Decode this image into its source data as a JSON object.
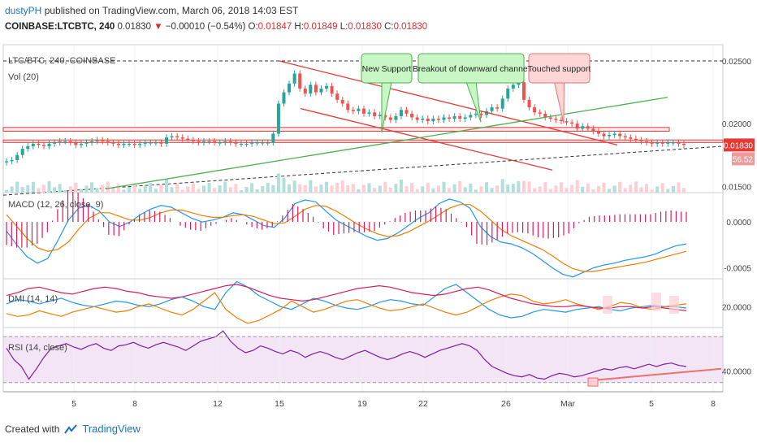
{
  "header": {
    "author": "dustyPH",
    "published_text": "published on TradingView.com, March 06, 2018 14:03 EST",
    "symbol": "COINBASE:LTCBTC, 240",
    "last": "0.01830",
    "arrow": "▼",
    "change": "−0.00010 (−0.54%)",
    "o_label": "O:",
    "o_value": "0.01847",
    "h_label": "H:",
    "h_value": "0.01849",
    "l_label": "L:",
    "l_value": "0.01830",
    "c_label": "C:",
    "c_value": "0.01830"
  },
  "footer": {
    "created_with": "Created with",
    "brand": "TradingView"
  },
  "colors": {
    "up": "#26a69a",
    "down": "#ef5350",
    "resistance": "#e53935",
    "support": "#4caf50",
    "macd": "#2196f3",
    "signal": "#f57c00",
    "hist": "#d81b60",
    "rsi": "#7b1fa2",
    "rsi_band": "#f3e5f5"
  },
  "chart_data": [
    {
      "type": "candlestick",
      "title": "LTC/BTC, 240, COINBASE",
      "volume_label": "Vol (20)",
      "x_tick_labels": [
        "5",
        "8",
        "12",
        "15",
        "19",
        "22",
        "26",
        "Mar",
        "5",
        "8"
      ],
      "y_tick_labels": [
        "0.02500",
        "0.02000",
        "0.01500"
      ],
      "ylim": [
        0.0145,
        0.0263
      ],
      "price_label": "0.01830",
      "volume_label_value": "56.52",
      "close_series": [
        0.017,
        0.0171,
        0.0175,
        0.018,
        0.0182,
        0.0184,
        0.0183,
        0.0182,
        0.0184,
        0.0185,
        0.0186,
        0.0186,
        0.0185,
        0.0183,
        0.0184,
        0.0185,
        0.0186,
        0.0187,
        0.0186,
        0.0185,
        0.0184,
        0.0183,
        0.0184,
        0.0184,
        0.0183,
        0.0184,
        0.0185,
        0.0185,
        0.0185,
        0.0184,
        0.0189,
        0.019,
        0.0189,
        0.0188,
        0.0187,
        0.0186,
        0.0185,
        0.0186,
        0.0186,
        0.0185,
        0.0185,
        0.0186,
        0.0185,
        0.0184,
        0.0184,
        0.0184,
        0.0185,
        0.0185,
        0.0185,
        0.0185,
        0.0192,
        0.0216,
        0.0225,
        0.0232,
        0.024,
        0.0228,
        0.0224,
        0.0231,
        0.0225,
        0.0228,
        0.023,
        0.0224,
        0.0219,
        0.0216,
        0.0211,
        0.021,
        0.0212,
        0.0208,
        0.0209,
        0.0206,
        0.0207,
        0.0205,
        0.0203,
        0.0206,
        0.0211,
        0.0208,
        0.0205,
        0.0203,
        0.0204,
        0.0202,
        0.0204,
        0.0203,
        0.0205,
        0.0204,
        0.0206,
        0.0204,
        0.0205,
        0.0207,
        0.0208,
        0.0207,
        0.021,
        0.0213,
        0.0212,
        0.022,
        0.0228,
        0.0231,
        0.0233,
        0.0219,
        0.0213,
        0.0209,
        0.0208,
        0.0205,
        0.0204,
        0.0203,
        0.0202,
        0.0201,
        0.02,
        0.0196,
        0.0198,
        0.0196,
        0.0194,
        0.0192,
        0.019,
        0.0191,
        0.0192,
        0.019,
        0.0189,
        0.0188,
        0.0187,
        0.0186,
        0.0185,
        0.0184,
        0.0185,
        0.0184,
        0.0185,
        0.0185,
        0.0184,
        0.0183
      ],
      "annotations": [
        "New Support",
        "Breakout of downward channel",
        "Touched support"
      ]
    },
    {
      "type": "line",
      "title": "MACD (12, 26, close, 9)",
      "y_tick_labels": [
        "0.0000",
        "-0.0005"
      ],
      "ylim": [
        -0.00062,
        0.00032
      ],
      "series": [
        {
          "values": [
            -0.0001,
            -0.00025,
            -0.00038,
            -0.00045,
            -0.0004,
            -0.0002,
            2e-05,
            0.00015,
            0.00018,
            0.00012,
            0.0,
            -5e-05,
            0.0,
            8e-05,
            0.00014,
            0.00018,
            0.00016,
            0.0001,
            4e-05,
            0.0,
            2e-05,
            5e-05,
            0.0001,
            8e-05,
            2e-05,
            -4e-05,
            -6e-05,
            4e-05,
            0.0002,
            0.00024,
            0.00022,
            0.00012,
            2e-05,
            -4e-05,
            -0.0001,
            -0.00016,
            -0.0002,
            -0.00018,
            -0.00012,
            -4e-05,
            4e-05,
            0.0001,
            0.0002,
            0.00025,
            0.00022,
            0.00015,
            -5e-05,
            -0.00016,
            -0.00022,
            -0.00024,
            -0.00028,
            -0.00034,
            -0.00042,
            -0.0005,
            -0.00057,
            -0.0006,
            -0.00055,
            -0.0005,
            -0.00047,
            -0.00045,
            -0.00042,
            -0.0004,
            -0.00038,
            -0.00035,
            -0.0003,
            -0.00026,
            -0.00024
          ]
        },
        {
          "values": [
            8e-05,
            -5e-05,
            -0.00018,
            -0.00028,
            -0.00032,
            -0.0003,
            -0.00022,
            -8e-05,
            4e-05,
            0.0001,
            0.0001,
            6e-05,
            2e-05,
            2e-05,
            5e-05,
            0.0001,
            0.00013,
            0.00013,
            0.0001,
            7e-05,
            5e-05,
            5e-05,
            7e-05,
            8e-05,
            6e-05,
            2e-05,
            -2e-05,
            -1e-05,
            6e-05,
            0.00014,
            0.00018,
            0.00017,
            0.00012,
            5e-05,
            -2e-05,
            -8e-05,
            -0.00013,
            -0.00016,
            -0.00015,
            -0.00011,
            -5e-05,
            1e-05,
            8e-05,
            0.00015,
            0.00019,
            0.00019,
            0.00012,
            2e-05,
            -8e-05,
            -0.00015,
            -0.0002,
            -0.00025,
            -0.0003,
            -0.00037,
            -0.00045,
            -0.00051,
            -0.00054,
            -0.00054,
            -0.00052,
            -0.0005,
            -0.00048,
            -0.00046,
            -0.00044,
            -0.00041,
            -0.00038,
            -0.00035,
            -0.00032
          ]
        }
      ]
    },
    {
      "type": "line",
      "title": "DMI (14, 14)",
      "y_tick_labels": [
        "20.0000"
      ],
      "ylim": [
        5,
        40
      ],
      "series": [
        {
          "values": [
            22,
            25,
            24,
            22,
            24,
            26,
            23,
            21,
            20,
            22,
            24,
            23,
            21,
            20,
            22,
            25,
            27,
            24,
            20,
            18,
            30,
            38,
            34,
            28,
            24,
            20,
            18,
            22,
            26,
            24,
            21,
            19,
            18,
            20,
            23,
            25,
            24,
            22,
            21,
            27,
            33,
            36,
            30,
            24,
            18,
            14,
            12,
            13,
            16,
            18,
            17,
            16,
            18,
            19,
            20,
            18,
            17,
            19,
            20,
            21,
            20,
            20,
            19
          ]
        },
        {
          "values": [
            15,
            13,
            14,
            17,
            15,
            13,
            16,
            18,
            20,
            18,
            16,
            17,
            20,
            22,
            19,
            16,
            14,
            18,
            24,
            30,
            18,
            12,
            8,
            10,
            14,
            18,
            24,
            20,
            16,
            18,
            21,
            24,
            25,
            22,
            19,
            17,
            18,
            20,
            22,
            19,
            16,
            14,
            16,
            20,
            24,
            27,
            29,
            28,
            24,
            22,
            23,
            25,
            22,
            20,
            18,
            20,
            23,
            22,
            19,
            18,
            20,
            21,
            22
          ]
        },
        {
          "values": [
            28,
            30,
            33,
            34,
            32,
            30,
            29,
            31,
            33,
            34,
            33,
            31,
            30,
            28,
            27,
            26,
            27,
            29,
            31,
            33,
            35,
            36,
            34,
            31,
            28,
            26,
            25,
            24,
            25,
            27,
            29,
            31,
            33,
            34,
            35,
            34,
            32,
            30,
            29,
            28,
            29,
            31,
            33,
            34,
            32,
            29,
            26,
            24,
            22,
            21,
            20,
            20,
            21,
            20,
            19,
            19,
            20,
            20,
            19,
            20,
            19,
            18,
            17
          ]
        }
      ]
    },
    {
      "type": "line",
      "title": "RSI (14, close)",
      "y_tick_labels": [
        "40.0000"
      ],
      "ylim": [
        22,
        78
      ],
      "series": [
        {
          "values": [
            60,
            50,
            44,
            33,
            42,
            52,
            60,
            62,
            64,
            61,
            59,
            62,
            64,
            60,
            58,
            62,
            63,
            65,
            62,
            60,
            63,
            65,
            63,
            61,
            58,
            62,
            66,
            68,
            70,
            75,
            66,
            60,
            56,
            58,
            62,
            60,
            57,
            55,
            58,
            56,
            52,
            55,
            57,
            55,
            52,
            50,
            53,
            56,
            58,
            55,
            52,
            50,
            52,
            55,
            57,
            55,
            52,
            55,
            58,
            60,
            62,
            64,
            62,
            58,
            50,
            44,
            41,
            38,
            36,
            35,
            37,
            34,
            33,
            36,
            38,
            37,
            35,
            36,
            38,
            40,
            42,
            41,
            43,
            44,
            42,
            44,
            46,
            44,
            46,
            47,
            45,
            44
          ]
        }
      ]
    }
  ]
}
